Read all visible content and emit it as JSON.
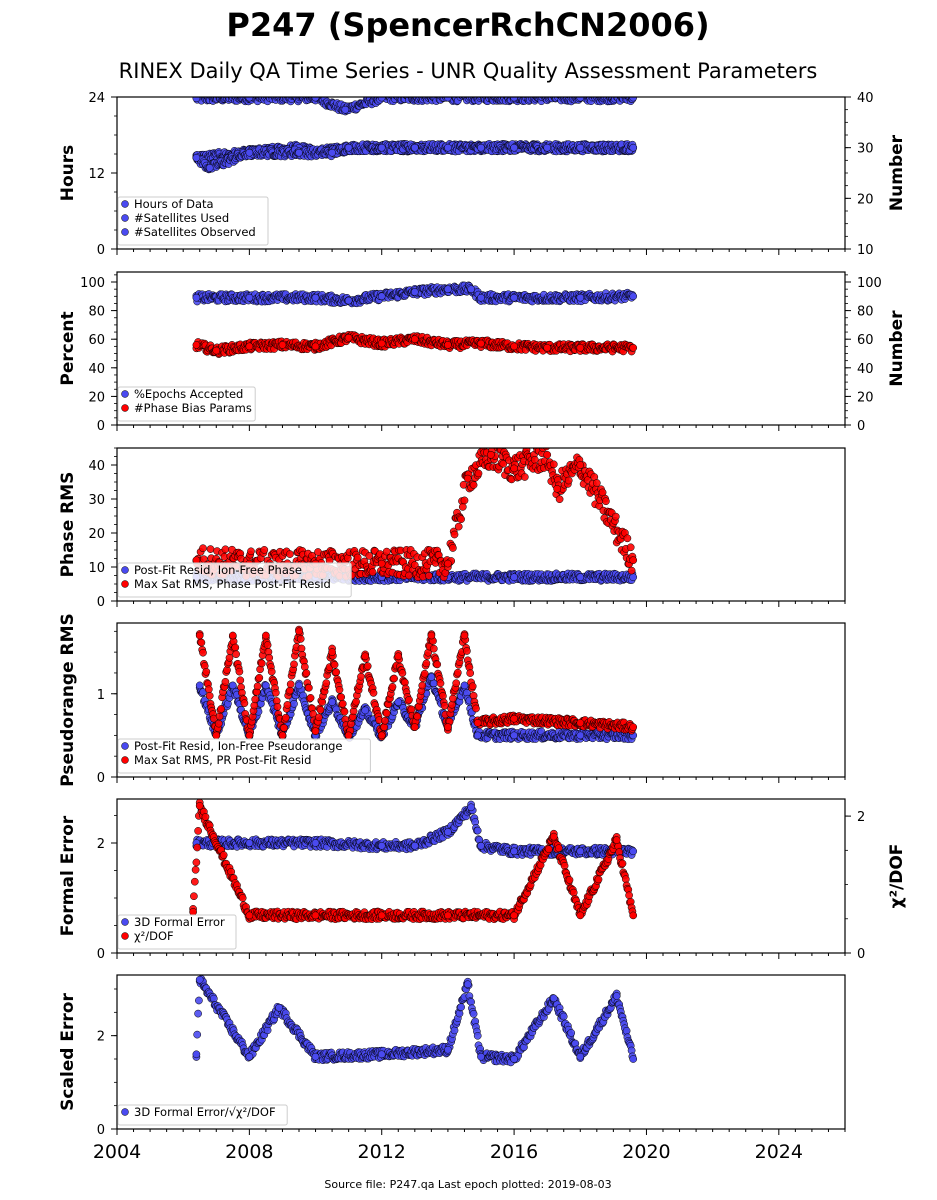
{
  "title": "P247 (SpencerRchCN2006)",
  "subtitle": "RINEX Daily QA Time Series - UNR Quality Assessment Parameters",
  "footer": "Source file: P247.qa Last epoch plotted: 2019-08-03",
  "colors": {
    "blue": "#4a4af0",
    "red": "#ff0000",
    "green": "#0e8a0e"
  },
  "chart_data": [
    {
      "type": "scatter",
      "ylabel": "Hours",
      "ylabel_right": "Number",
      "xlim": [
        2004,
        2026
      ],
      "ylim": [
        0,
        24
      ],
      "ylim_right": [
        10,
        40
      ],
      "yticks": [
        0,
        12,
        24
      ],
      "yticks_right": [
        10,
        20,
        30,
        40
      ],
      "legend": [
        "Hours of Data",
        "#Satellites Used",
        "#Satellites Observed"
      ],
      "series": [
        {
          "name": "Hours of Data",
          "axis": "left",
          "x": [
            2006.4,
            2008,
            2010,
            2010.9,
            2012,
            2014,
            2016,
            2018,
            2019.6
          ],
          "y": [
            23.8,
            23.9,
            23.9,
            22.0,
            23.9,
            23.9,
            23.9,
            23.9,
            23.9
          ]
        },
        {
          "name": "#Satellites Used",
          "axis": "right",
          "x": [
            2006.4,
            2008,
            2009.5,
            2010,
            2011,
            2012,
            2014,
            2016,
            2018,
            2019.6
          ],
          "y": [
            28,
            29,
            30,
            29,
            30,
            30,
            30,
            30,
            30,
            30
          ]
        },
        {
          "name": "#Satellites Observed",
          "axis": "right",
          "x": [
            2006.4,
            2006.8,
            2008,
            2009.5,
            2010.5,
            2011,
            2012,
            2013,
            2014,
            2015,
            2016,
            2017,
            2018,
            2019.6
          ],
          "y": [
            28,
            26,
            29,
            29,
            29,
            30,
            30,
            30,
            30,
            30,
            30,
            30,
            30,
            30
          ]
        }
      ]
    },
    {
      "type": "scatter",
      "ylabel": "Percent",
      "ylabel_right": "Number",
      "xlim": [
        2004,
        2026
      ],
      "ylim": [
        0,
        107
      ],
      "ylim_right": [
        0,
        107
      ],
      "yticks": [
        0,
        20,
        40,
        60,
        80,
        100
      ],
      "yticks_right": [
        0,
        20,
        40,
        60,
        80,
        100
      ],
      "legend": [
        "%Epochs Accepted",
        "#Phase Bias Params"
      ],
      "series": [
        {
          "name": "%Epochs Accepted",
          "axis": "left",
          "x": [
            2006.4,
            2008,
            2010,
            2011,
            2012,
            2013,
            2014,
            2014.7,
            2015,
            2016,
            2018,
            2019.6
          ],
          "y": [
            89,
            89,
            89,
            87,
            90,
            93,
            95,
            95,
            89,
            89,
            89,
            90
          ]
        },
        {
          "name": "#Phase Bias Params",
          "axis": "right",
          "x": [
            2006.4,
            2007,
            2008,
            2009,
            2010,
            2011,
            2012,
            2013,
            2014,
            2015,
            2016,
            2017,
            2018,
            2019.6
          ],
          "y": [
            56,
            52,
            55,
            56,
            55,
            61,
            57,
            60,
            56,
            57,
            55,
            54,
            54,
            54
          ]
        }
      ]
    },
    {
      "type": "scatter",
      "ylabel": "Phase RMS",
      "xlim": [
        2004,
        2026
      ],
      "ylim": [
        0,
        45
      ],
      "yticks": [
        0,
        10,
        20,
        30,
        40
      ],
      "legend": [
        "Post-Fit Resid, Ion-Free Phase",
        "Max Sat RMS, Phase Post-Fit Resid"
      ],
      "series": [
        {
          "name": "Post-Fit Resid, Ion-Free Phase",
          "x": [
            2006.4,
            2008,
            2010,
            2012,
            2014,
            2016,
            2018,
            2019.6
          ],
          "y": [
            7,
            7,
            7,
            7,
            7,
            7,
            7,
            7
          ]
        },
        {
          "name": "Max Sat RMS, Phase Post-Fit Resid",
          "x": [
            2006.4,
            2008,
            2010,
            2012,
            2014,
            2014.6,
            2015.3,
            2016,
            2017,
            2017.3,
            2018,
            2019.6
          ],
          "y": [
            12,
            11,
            11,
            11,
            11,
            36,
            43,
            39,
            43,
            33,
            40,
            12
          ]
        }
      ]
    },
    {
      "type": "scatter",
      "ylabel": "Pseudorange RMS",
      "xlim": [
        2004,
        2026
      ],
      "ylim": [
        0,
        1.85
      ],
      "yticks": [
        0,
        1
      ],
      "legend": [
        "Post-Fit Resid, Ion-Free Pseudorange",
        "Max Sat RMS, PR Post-Fit Resid"
      ],
      "series": [
        {
          "name": "Post-Fit Resid, Ion-Free Pseudorange",
          "x": [
            2006.5,
            2007.0,
            2007.5,
            2008.0,
            2008.5,
            2009.0,
            2009.5,
            2010.0,
            2010.5,
            2011.0,
            2011.5,
            2012.0,
            2012.5,
            2013.0,
            2013.5,
            2014.0,
            2014.5,
            2014.9,
            2016,
            2018,
            2019.6
          ],
          "y": [
            1.1,
            0.5,
            1.1,
            0.5,
            1.1,
            0.5,
            1.1,
            0.5,
            0.9,
            0.5,
            0.8,
            0.5,
            0.9,
            0.6,
            1.2,
            0.6,
            1.1,
            0.5,
            0.5,
            0.5,
            0.5
          ]
        },
        {
          "name": "Max Sat RMS, PR Post-Fit Resid",
          "x": [
            2006.5,
            2007.0,
            2007.5,
            2008.0,
            2008.5,
            2009.0,
            2009.5,
            2010.0,
            2010.5,
            2011.0,
            2011.5,
            2012.0,
            2012.5,
            2013.0,
            2013.5,
            2014.0,
            2014.5,
            2014.9,
            2016,
            2018,
            2019.6
          ],
          "y": [
            1.7,
            0.5,
            1.7,
            0.5,
            1.7,
            0.5,
            1.75,
            0.55,
            1.5,
            0.5,
            1.45,
            0.5,
            1.45,
            0.6,
            1.7,
            0.6,
            1.7,
            0.65,
            0.7,
            0.65,
            0.6
          ]
        }
      ]
    },
    {
      "type": "scatter",
      "ylabel": "Formal Error",
      "ylabel_right": "χ²/DOF",
      "xlim": [
        2004,
        2026
      ],
      "ylim": [
        0,
        2.8
      ],
      "ylim_right": [
        0,
        2.25
      ],
      "yticks": [
        0,
        2
      ],
      "yticks_right": [
        0,
        2
      ],
      "legend": [
        "3D Formal Error",
        "χ²/DOF"
      ],
      "series": [
        {
          "name": "3D Formal Error",
          "axis": "left",
          "x": [
            2006.4,
            2008,
            2010,
            2012,
            2013,
            2014,
            2014.7,
            2015,
            2016,
            2018,
            2019.6
          ],
          "y": [
            2.0,
            2.0,
            2.0,
            1.95,
            1.95,
            2.2,
            2.65,
            1.95,
            1.85,
            1.85,
            1.85
          ]
        },
        {
          "name": "χ²/DOF",
          "axis": "right",
          "x": [
            2006.3,
            2006.5,
            2008,
            2010,
            2012,
            2014,
            2016,
            2017.2,
            2018,
            2019.1,
            2019.6
          ],
          "y": [
            0.6,
            2.15,
            0.55,
            0.55,
            0.55,
            0.55,
            0.55,
            1.7,
            0.55,
            1.65,
            0.55
          ]
        }
      ]
    },
    {
      "type": "scatter",
      "ylabel": "Scaled Error",
      "xlim": [
        2004,
        2026
      ],
      "ylim": [
        0,
        3.3
      ],
      "yticks": [
        0,
        2
      ],
      "xticks": [
        2004,
        2008,
        2012,
        2016,
        2020,
        2024
      ],
      "legend": [
        "3D Formal Error/√χ²/DOF"
      ],
      "series": [
        {
          "name": "3D Formal Error/√χ²/DOF",
          "x": [
            2006.4,
            2006.5,
            2008,
            2008.9,
            2010,
            2012,
            2014,
            2014.6,
            2015,
            2016,
            2017.2,
            2018,
            2019.1,
            2019.6
          ],
          "y": [
            1.6,
            3.2,
            1.55,
            2.6,
            1.55,
            1.6,
            1.7,
            3.1,
            1.55,
            1.5,
            2.8,
            1.55,
            2.85,
            1.5
          ]
        }
      ]
    }
  ]
}
